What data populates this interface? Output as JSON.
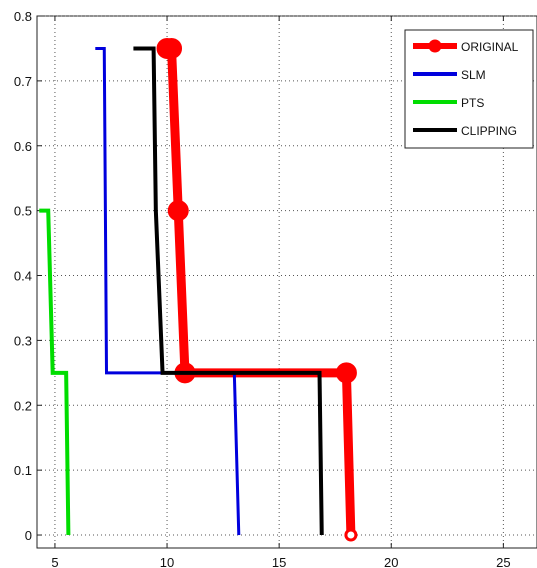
{
  "chart_data": {
    "type": "line",
    "title": "",
    "xlabel": "",
    "ylabel": "",
    "xlim": [
      4.2,
      26.5
    ],
    "ylim": [
      -0.02,
      0.8
    ],
    "xticks": [
      5,
      10,
      15,
      20,
      25
    ],
    "yticks": [
      0,
      0.1,
      0.2,
      0.3,
      0.4,
      0.5,
      0.6,
      0.7,
      0.8
    ],
    "xtick_labels": [
      "5",
      "10",
      "15",
      "20",
      "25"
    ],
    "ytick_labels": [
      "0",
      "0.1",
      "0.2",
      "0.3",
      "0.4",
      "0.5",
      "0.6",
      "0.7",
      "0.8"
    ],
    "grid": true,
    "legend_position": "top-right",
    "series": [
      {
        "name": "ORIGINAL",
        "color": "#ff0000",
        "x": [
          10.0,
          10.2,
          10.5,
          10.8,
          18.0,
          18.2
        ],
        "y": [
          0.75,
          0.75,
          0.5,
          0.25,
          0.25,
          0.0
        ],
        "markers": true
      },
      {
        "name": "SLM",
        "color": "#0000dd",
        "x": [
          6.8,
          7.2,
          7.3,
          13.0,
          13.2
        ],
        "y": [
          0.75,
          0.75,
          0.25,
          0.25,
          0.0
        ]
      },
      {
        "name": "PTS",
        "color": "#00dd00",
        "x": [
          4.3,
          4.7,
          4.9,
          5.5,
          5.6
        ],
        "y": [
          0.5,
          0.5,
          0.25,
          0.25,
          0.0
        ]
      },
      {
        "name": "CLIPPING",
        "color": "#000000",
        "x": [
          8.5,
          9.4,
          9.5,
          9.8,
          16.8,
          16.9
        ],
        "y": [
          0.75,
          0.75,
          0.5,
          0.25,
          0.25,
          0.0
        ]
      }
    ]
  }
}
